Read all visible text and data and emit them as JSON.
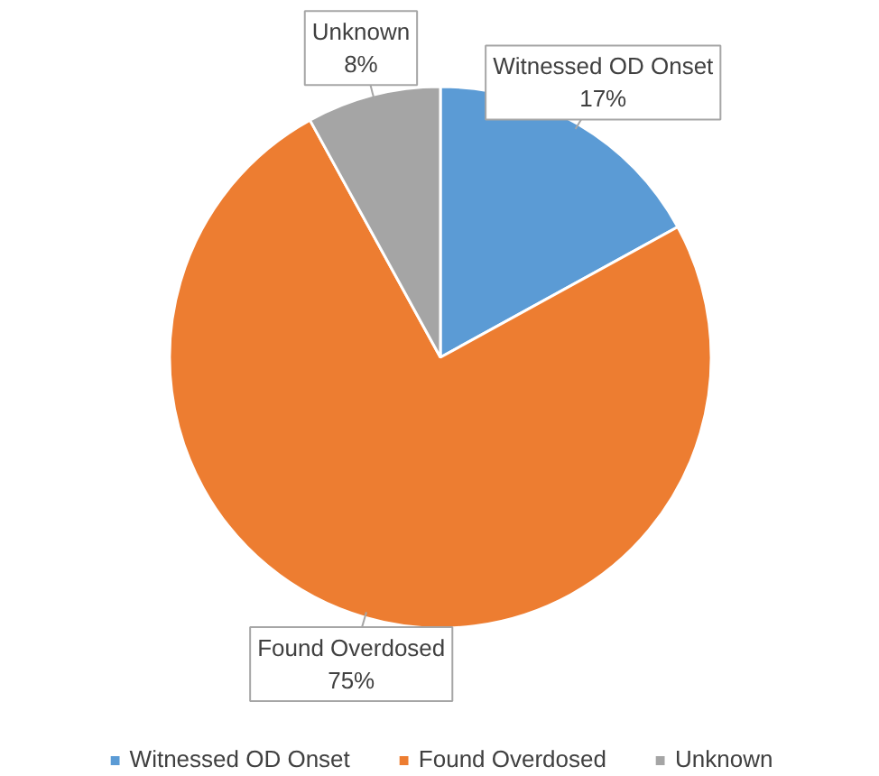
{
  "chart_data": {
    "type": "pie",
    "categories": [
      "Witnessed OD Onset",
      "Found Overdosed",
      "Unknown"
    ],
    "values": [
      17,
      75,
      8
    ],
    "value_labels": [
      "17%",
      "75%",
      "8%"
    ],
    "colors": [
      "#5b9bd5",
      "#ed7d31",
      "#a5a5a5"
    ],
    "legend": "bottom"
  }
}
